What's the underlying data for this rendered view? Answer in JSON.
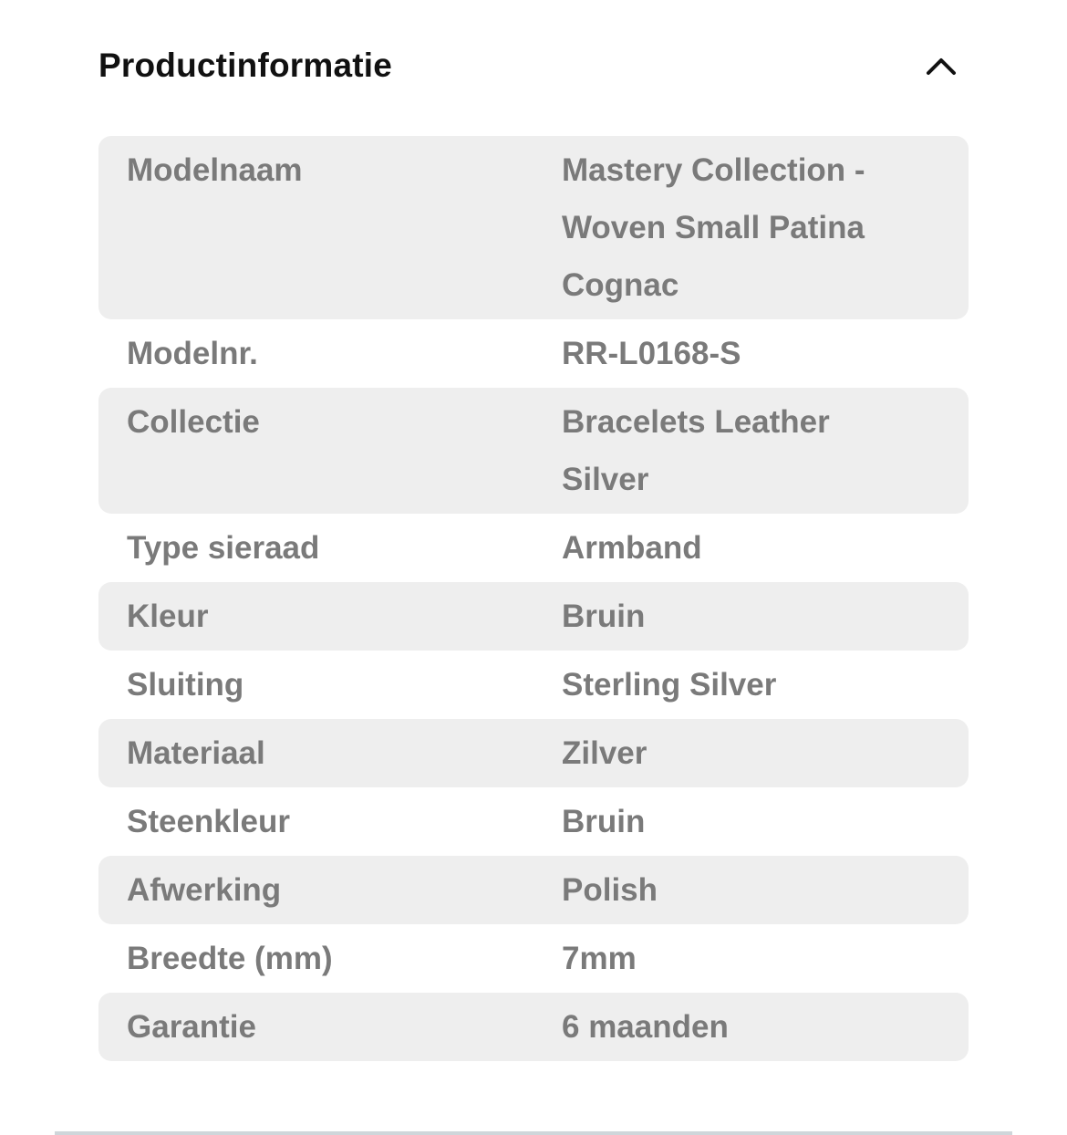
{
  "section": {
    "title": "Productinformatie",
    "expanded": true,
    "toggle_icon": "chevron-up-icon"
  },
  "rows": [
    {
      "label": "Modelnaam",
      "value": "Mastery Collection - Woven Small Patina Cognac"
    },
    {
      "label": "Modelnr.",
      "value": "RR-L0168-S"
    },
    {
      "label": "Collectie",
      "value": "Bracelets Leather Silver"
    },
    {
      "label": "Type sieraad",
      "value": "Armband"
    },
    {
      "label": "Kleur",
      "value": "Bruin"
    },
    {
      "label": "Sluiting",
      "value": "Sterling Silver"
    },
    {
      "label": "Materiaal",
      "value": "Zilver"
    },
    {
      "label": "Steenkleur",
      "value": "Bruin"
    },
    {
      "label": "Afwerking",
      "value": "Polish"
    },
    {
      "label": "Breedte (mm)",
      "value": "7mm"
    },
    {
      "label": "Garantie",
      "value": "6 maanden"
    }
  ]
}
